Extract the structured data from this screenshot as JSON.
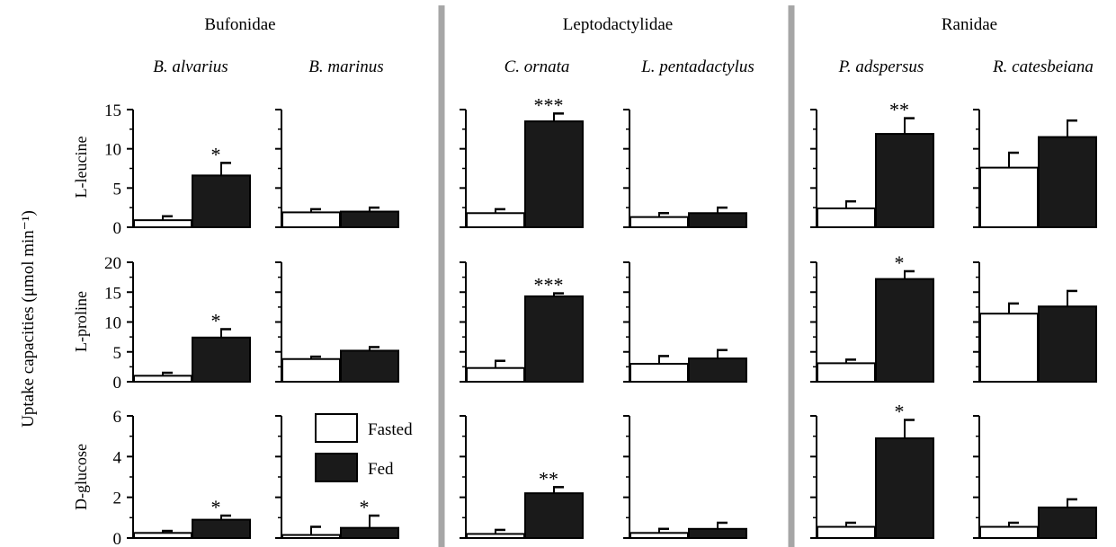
{
  "figure": {
    "ylabel": "Uptake capacities (μmol min⁻¹)",
    "families": [
      "Bufonidae",
      "Leptodactylidae",
      "Ranidae"
    ],
    "species": [
      "B. alvarius",
      "B. marinus",
      "C. ornata",
      "L. pentadactylus",
      "P. adspersus",
      "R. catesbeiana"
    ],
    "legend": {
      "fasted": "Fasted",
      "fed": "Fed"
    },
    "colors": {
      "fasted": "#ffffff",
      "fed": "#1a1a1a",
      "divider": "#a6a6a6"
    }
  },
  "chart_data": {
    "type": "bar",
    "categories": [
      "Fasted",
      "Fed"
    ],
    "rows": [
      {
        "label": "L-leucine",
        "ylim": [
          0,
          15
        ],
        "ticks": [
          0,
          5,
          10,
          15
        ],
        "tick_labels": [
          "0",
          "5",
          "10",
          "15"
        ],
        "panels": [
          {
            "species": "B. alvarius",
            "fasted": 0.9,
            "fasted_err": 0.5,
            "fed": 6.6,
            "fed_err": 1.6,
            "sig": "*"
          },
          {
            "species": "B. marinus",
            "fasted": 1.9,
            "fasted_err": 0.4,
            "fed": 2.0,
            "fed_err": 0.5,
            "sig": ""
          },
          {
            "species": "C. ornata",
            "fasted": 1.8,
            "fasted_err": 0.5,
            "fed": 13.5,
            "fed_err": 1.0,
            "sig": "***"
          },
          {
            "species": "L. pentadactylus",
            "fasted": 1.3,
            "fasted_err": 0.5,
            "fed": 1.8,
            "fed_err": 0.7,
            "sig": ""
          },
          {
            "species": "P. adspersus",
            "fasted": 2.4,
            "fasted_err": 0.9,
            "fed": 11.9,
            "fed_err": 2.0,
            "sig": "**"
          },
          {
            "species": "R. catesbeiana",
            "fasted": 7.6,
            "fasted_err": 1.9,
            "fed": 11.5,
            "fed_err": 2.1,
            "sig": ""
          }
        ]
      },
      {
        "label": "L-proline",
        "ylim": [
          0,
          20
        ],
        "ticks": [
          0,
          5,
          10,
          15,
          20
        ],
        "tick_labels": [
          "0",
          "5",
          "10",
          "15",
          "20"
        ],
        "panels": [
          {
            "species": "B. alvarius",
            "fasted": 1.0,
            "fasted_err": 0.5,
            "fed": 7.4,
            "fed_err": 1.4,
            "sig": "*"
          },
          {
            "species": "B. marinus",
            "fasted": 3.8,
            "fasted_err": 0.4,
            "fed": 5.2,
            "fed_err": 0.6,
            "sig": ""
          },
          {
            "species": "C. ornata",
            "fasted": 2.3,
            "fasted_err": 1.2,
            "fed": 14.3,
            "fed_err": 0.5,
            "sig": "***"
          },
          {
            "species": "L. pentadactylus",
            "fasted": 3.0,
            "fasted_err": 1.3,
            "fed": 3.9,
            "fed_err": 1.4,
            "sig": ""
          },
          {
            "species": "P. adspersus",
            "fasted": 3.1,
            "fasted_err": 0.6,
            "fed": 17.2,
            "fed_err": 1.3,
            "sig": "*"
          },
          {
            "species": "R. catesbeiana",
            "fasted": 11.4,
            "fasted_err": 1.7,
            "fed": 12.6,
            "fed_err": 2.6,
            "sig": ""
          }
        ]
      },
      {
        "label": "D-glucose",
        "ylim": [
          0,
          6
        ],
        "ticks": [
          0,
          2,
          4,
          6
        ],
        "tick_labels": [
          "0",
          "2",
          "4",
          "6"
        ],
        "panels": [
          {
            "species": "B. alvarius",
            "fasted": 0.25,
            "fasted_err": 0.1,
            "fed": 0.9,
            "fed_err": 0.2,
            "sig": "*"
          },
          {
            "species": "B. marinus",
            "fasted": 0.15,
            "fasted_err": 0.4,
            "fed": 0.5,
            "fed_err": 0.6,
            "sig": "*"
          },
          {
            "species": "C. ornata",
            "fasted": 0.2,
            "fasted_err": 0.2,
            "fed": 2.2,
            "fed_err": 0.3,
            "sig": "**"
          },
          {
            "species": "L. pentadactylus",
            "fasted": 0.25,
            "fasted_err": 0.2,
            "fed": 0.45,
            "fed_err": 0.3,
            "sig": ""
          },
          {
            "species": "P. adspersus",
            "fasted": 0.55,
            "fasted_err": 0.2,
            "fed": 4.9,
            "fed_err": 0.9,
            "sig": "*"
          },
          {
            "species": "R. catesbeiana",
            "fasted": 0.55,
            "fasted_err": 0.2,
            "fed": 1.5,
            "fed_err": 0.4,
            "sig": ""
          }
        ]
      }
    ]
  }
}
